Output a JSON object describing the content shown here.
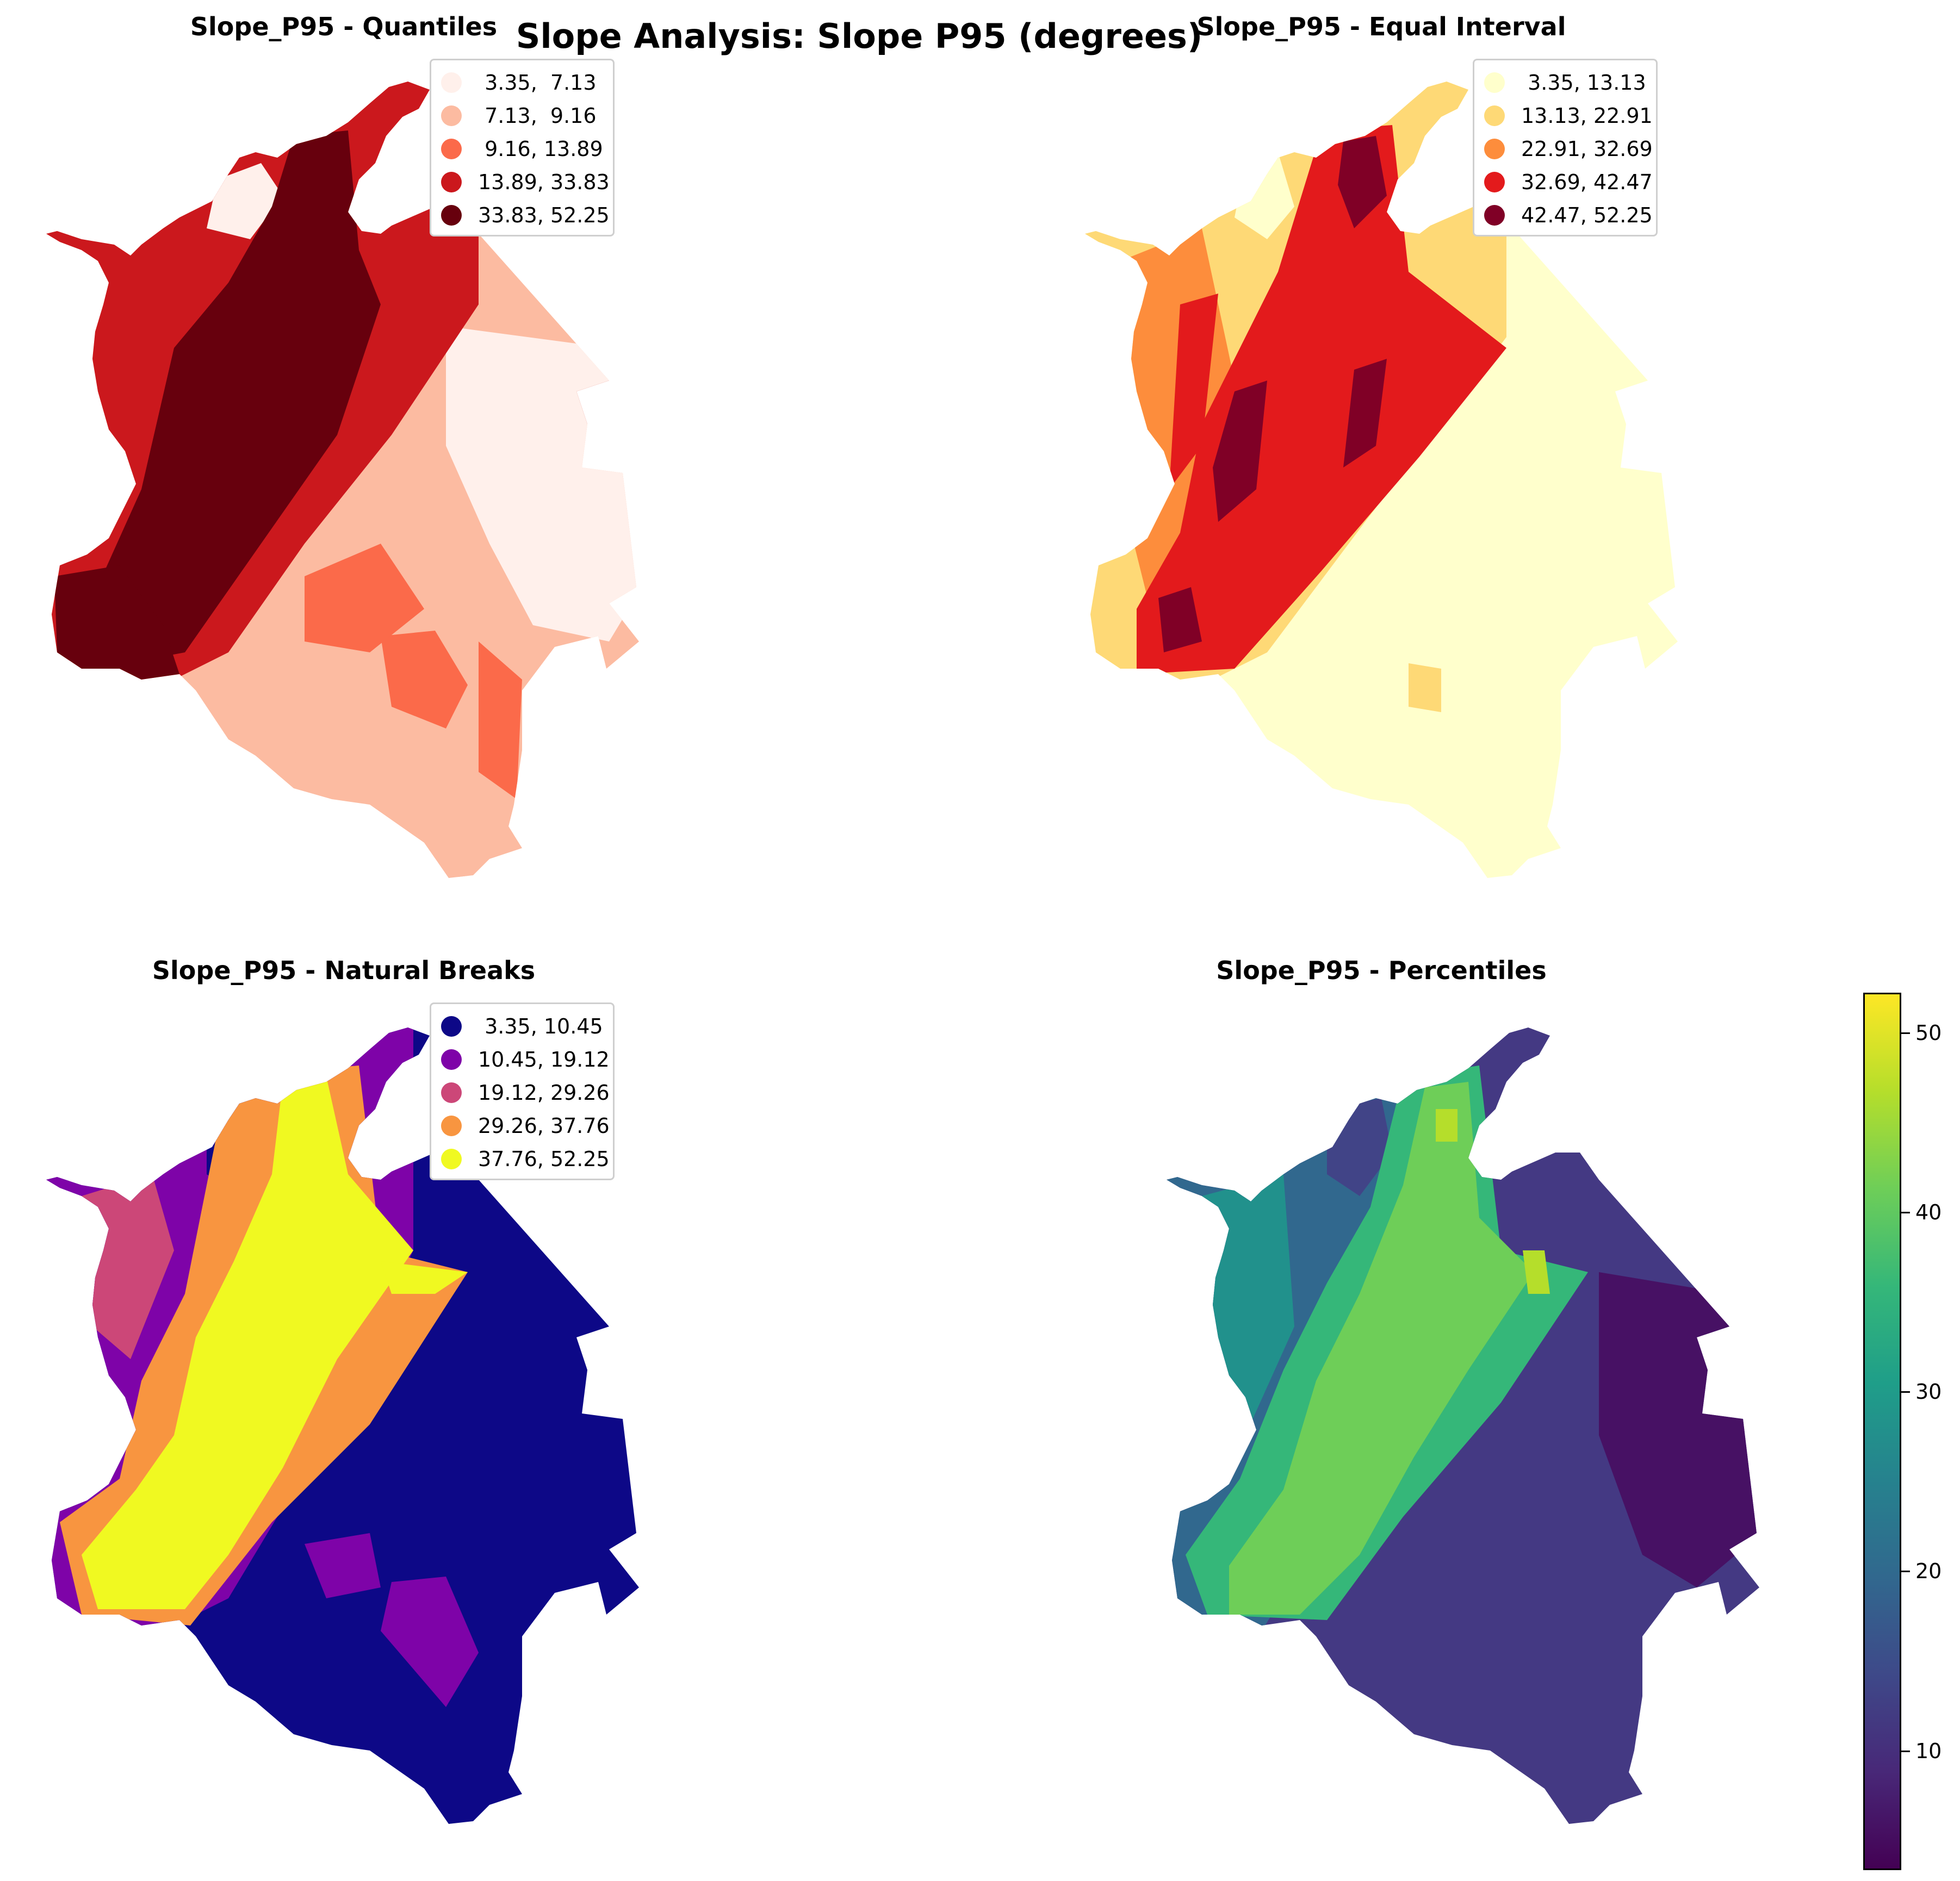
{
  "figure": {
    "title": "Slope Analysis: Slope P95 (degrees)"
  },
  "panels": [
    {
      "title": "Slope_P95 - Quantiles",
      "legend": [
        {
          "label": " 3.35,  7.13",
          "color": "#fff0eb"
        },
        {
          "label": " 7.13,  9.16",
          "color": "#fcbba1"
        },
        {
          "label": " 9.16, 13.89",
          "color": "#fb6a4a"
        },
        {
          "label": "13.89, 33.83",
          "color": "#cb181d"
        },
        {
          "label": "33.83, 52.25",
          "color": "#67000d"
        }
      ]
    },
    {
      "title": "Slope_P95 - Equal Interval",
      "legend": [
        {
          "label": " 3.35, 13.13",
          "color": "#ffffcc"
        },
        {
          "label": "13.13, 22.91",
          "color": "#fed976"
        },
        {
          "label": "22.91, 32.69",
          "color": "#fd8d3c"
        },
        {
          "label": "32.69, 42.47",
          "color": "#e31a1c"
        },
        {
          "label": "42.47, 52.25",
          "color": "#800026"
        }
      ]
    },
    {
      "title": "Slope_P95 - Natural Breaks",
      "legend": [
        {
          "label": " 3.35, 10.45",
          "color": "#0d0887"
        },
        {
          "label": "10.45, 19.12",
          "color": "#7e03a8"
        },
        {
          "label": "19.12, 29.26",
          "color": "#cc4778"
        },
        {
          "label": "29.26, 37.76",
          "color": "#f89540"
        },
        {
          "label": "37.76, 52.25",
          "color": "#f0f921"
        }
      ]
    },
    {
      "title": "Slope_P95 - Percentiles",
      "colorbar": {
        "ticks": [
          "10",
          "20",
          "30",
          "40",
          "50"
        ],
        "range": [
          3.35,
          52.25
        ],
        "colormap": "viridis"
      }
    }
  ]
}
